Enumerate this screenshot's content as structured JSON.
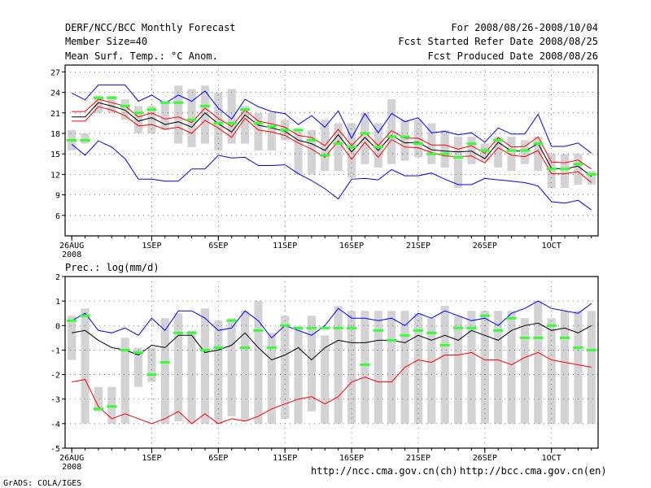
{
  "header": {
    "title": "DERF/NCC/BCC Monthly Forecast",
    "member_size": "Member Size=40",
    "variable": "Mean Surf. Temp.: °C Anom.",
    "period": "For 2008/08/26-2008/10/04",
    "fcst_started": "Fcst Started Refer Date 2008/08/25",
    "fcst_produced": "Fcst Produced Date 2008/08/26"
  },
  "footer": {
    "url_ncc": "http://ncc.cma.gov.cn(ch)",
    "url_bcc": "http://bcc.cma.gov.cn(en)",
    "credit": "GrADS: COLA/IGES"
  },
  "x_axis": {
    "labels": [
      "26AUG",
      "1SEP",
      "6SEP",
      "11SEP",
      "16SEP",
      "21SEP",
      "26SEP",
      "1OCT"
    ],
    "label_days": [
      0,
      6,
      11,
      16,
      21,
      26,
      31,
      36
    ],
    "year_label": "2008",
    "day_count": 40
  },
  "chart_data": [
    {
      "type": "line",
      "title": "Mean Surf. Temp.: °C Anom.",
      "ylim": [
        3,
        28
      ],
      "yticks": [
        6,
        9,
        12,
        15,
        18,
        21,
        24,
        27
      ],
      "grid": true,
      "series": [
        {
          "name": "max",
          "color": "#0000ff",
          "values": [
            23.9,
            22.9,
            25.1,
            25.1,
            25.1,
            22.7,
            23.6,
            22.4,
            23.6,
            22.7,
            24.2,
            21.7,
            20.1,
            23.0,
            21.9,
            21.2,
            20.9,
            19.3,
            20.6,
            18.9,
            21.3,
            17.3,
            20.9,
            18.1,
            20.9,
            19.7,
            20.3,
            18.1,
            18.3,
            17.8,
            18.1,
            16.7,
            18.8,
            17.9,
            17.9,
            20.8,
            16.1,
            16.1,
            16.6,
            15.1
          ]
        },
        {
          "name": "upper",
          "color": "#ff0000",
          "values": [
            21.2,
            21.2,
            23.0,
            22.5,
            22.0,
            20.4,
            21.0,
            20.1,
            20.4,
            19.6,
            21.7,
            20.2,
            19.0,
            21.4,
            19.8,
            19.4,
            18.9,
            17.7,
            17.4,
            16.2,
            18.6,
            16.2,
            18.2,
            16.2,
            18.4,
            17.3,
            17.3,
            16.3,
            16.3,
            15.7,
            16.2,
            15.1,
            17.4,
            16.0,
            16.1,
            17.5,
            13.8,
            13.7,
            14.1,
            12.8
          ]
        },
        {
          "name": "mean",
          "color": "#000000",
          "values": [
            20.4,
            20.4,
            22.5,
            22.0,
            21.4,
            19.8,
            20.3,
            19.3,
            19.7,
            18.9,
            21.0,
            19.4,
            18.2,
            20.7,
            19.2,
            18.8,
            18.3,
            17.0,
            16.5,
            15.5,
            17.8,
            15.3,
            17.4,
            15.5,
            17.7,
            16.6,
            16.7,
            15.6,
            15.4,
            15.3,
            15.4,
            14.3,
            16.7,
            15.4,
            15.4,
            16.5,
            12.9,
            12.8,
            13.2,
            11.7
          ]
        },
        {
          "name": "lower",
          "color": "#ff0000",
          "values": [
            19.8,
            19.8,
            21.9,
            21.4,
            20.6,
            19.1,
            19.3,
            18.6,
            18.9,
            18.0,
            19.9,
            18.8,
            17.4,
            20.2,
            18.5,
            18.2,
            17.7,
            16.6,
            15.7,
            14.5,
            16.9,
            14.2,
            16.7,
            14.5,
            17.1,
            16.0,
            15.9,
            15.2,
            14.7,
            14.6,
            14.7,
            13.7,
            15.9,
            14.8,
            14.6,
            15.5,
            12.1,
            12.1,
            12.4,
            10.8
          ]
        },
        {
          "name": "min",
          "color": "#0000ff",
          "values": [
            16.4,
            14.8,
            16.9,
            16.0,
            14.3,
            11.3,
            11.3,
            11.0,
            11.0,
            12.8,
            12.8,
            14.8,
            14.4,
            14.5,
            13.3,
            13.3,
            13.4,
            12.1,
            11.1,
            9.9,
            8.4,
            11.3,
            11.4,
            11.2,
            12.7,
            11.8,
            11.8,
            12.2,
            11.3,
            10.5,
            10.5,
            11.4,
            11.2,
            11.0,
            10.8,
            10.3,
            8.0,
            7.8,
            8.2,
            6.8
          ]
        }
      ],
      "boxes": {
        "low": [
          15.5,
          16.5,
          21.0,
          21.0,
          20.0,
          18.0,
          18.0,
          18.5,
          16.5,
          16.0,
          16.5,
          15.5,
          16.5,
          16.5,
          15.5,
          15.5,
          17.0,
          12.0,
          12.0,
          12.5,
          12.5,
          11.5,
          13.5,
          13.0,
          13.5,
          14.0,
          14.5,
          13.5,
          13.0,
          10.0,
          13.5,
          14.0,
          13.0,
          12.5,
          13.5,
          12.5,
          10.0,
          10.0,
          10.5,
          10.5
        ],
        "high": [
          18.5,
          18.0,
          23.5,
          23.5,
          23.0,
          22.0,
          22.0,
          22.5,
          25.0,
          24.5,
          25.0,
          24.0,
          24.5,
          22.0,
          21.0,
          21.0,
          20.0,
          18.5,
          18.5,
          20.0,
          19.5,
          19.5,
          21.0,
          19.5,
          23.0,
          20.0,
          20.0,
          19.5,
          18.5,
          17.5,
          17.5,
          16.5,
          17.5,
          17.5,
          17.0,
          17.5,
          15.0,
          15.0,
          15.0,
          12.5
        ]
      },
      "obs_marks": [
        17.0,
        17.0,
        23.2,
        23.2,
        22.0,
        21.0,
        21.5,
        22.5,
        22.5,
        20.0,
        22.0,
        19.5,
        19.5,
        21.5,
        19.5,
        19.0,
        18.5,
        18.5,
        17.0,
        14.8,
        16.5,
        16.0,
        18.0,
        16.0,
        17.5,
        17.5,
        16.5,
        15.0,
        15.0,
        14.5,
        16.5,
        15.5,
        17.0,
        15.5,
        15.5,
        16.5,
        12.8,
        12.8,
        13.5,
        12.0
      ]
    },
    {
      "type": "line",
      "title": "Prec.: log(mm/d)",
      "ylim": [
        -5,
        2
      ],
      "yticks": [
        -5,
        -4,
        -3,
        -2,
        -1,
        0,
        1,
        2
      ],
      "grid": true,
      "series": [
        {
          "name": "max",
          "color": "#0000ff",
          "values": [
            0.2,
            0.5,
            -0.2,
            -0.3,
            -0.1,
            -0.4,
            0.3,
            -0.2,
            0.6,
            0.6,
            0.3,
            -0.2,
            -0.1,
            0.6,
            0.2,
            -0.5,
            0.0,
            -0.2,
            -0.4,
            0.0,
            0.7,
            0.3,
            0.3,
            0.2,
            0.3,
            0.0,
            0.5,
            0.3,
            0.6,
            0.4,
            0.2,
            0.3,
            0.0,
            0.5,
            0.7,
            1.0,
            0.7,
            0.6,
            0.5,
            0.9
          ]
        },
        {
          "name": "mean",
          "color": "#000000",
          "values": [
            -0.3,
            -0.2,
            -0.6,
            -0.9,
            -1.0,
            -1.2,
            -0.8,
            -0.9,
            -0.4,
            -0.4,
            -1.1,
            -1.0,
            -0.8,
            -0.3,
            -0.9,
            -1.4,
            -1.2,
            -0.9,
            -1.4,
            -0.9,
            -0.6,
            -0.7,
            -0.7,
            -0.6,
            -0.6,
            -0.7,
            -0.4,
            -0.6,
            -0.4,
            -0.6,
            -0.2,
            -0.4,
            -0.6,
            -0.2,
            0.0,
            0.1,
            -0.2,
            -0.1,
            -0.3,
            0.0
          ]
        },
        {
          "name": "lower",
          "color": "#ff0000",
          "values": [
            -2.3,
            -2.2,
            -3.3,
            -3.8,
            -3.6,
            -3.8,
            -4.0,
            -3.8,
            -3.5,
            -4.0,
            -3.6,
            -4.0,
            -3.8,
            -3.9,
            -3.7,
            -3.4,
            -3.2,
            -3.0,
            -2.9,
            -3.2,
            -2.9,
            -2.3,
            -2.1,
            -2.3,
            -2.3,
            -1.7,
            -1.4,
            -1.5,
            -1.2,
            -1.2,
            -1.1,
            -1.4,
            -1.4,
            -1.6,
            -1.3,
            -1.1,
            -1.4,
            -1.5,
            -1.6,
            -1.7
          ]
        }
      ],
      "bars_low": [
        -1.4,
        -4.0,
        -3.5,
        -4.0,
        -4.0,
        -2.5,
        -2.3,
        -4.0,
        -3.9,
        -4.0,
        -4.0,
        -4.0,
        -3.7,
        -3.9,
        -4.0,
        -4.0,
        -3.8,
        -4.0,
        -3.5,
        -4.0,
        -4.0,
        -4.0,
        -4.0,
        -4.0,
        -4.0,
        -4.0,
        -4.0,
        -4.0,
        -4.0,
        -4.0,
        -4.0,
        -4.0,
        -4.0,
        -4.0,
        -4.0,
        -4.0,
        -4.0,
        -4.0,
        -4.0,
        -4.0
      ],
      "bars_high": [
        0.4,
        0.7,
        -2.5,
        -2.5,
        -0.5,
        -0.9,
        -0.9,
        0.3,
        0.5,
        -0.2,
        0.7,
        0.2,
        0.3,
        0.6,
        1.0,
        -0.3,
        0.4,
        -0.1,
        0.4,
        -0.4,
        0.8,
        0.6,
        0.6,
        0.6,
        0.6,
        0.6,
        0.5,
        0.3,
        0.8,
        0.4,
        0.6,
        0.6,
        0.6,
        0.6,
        0.3,
        1.0,
        0.3,
        0.6,
        0.6,
        0.6
      ],
      "obs_marks": [
        0.2,
        0.4,
        -3.4,
        -3.3,
        -1.0,
        -1.1,
        -2.0,
        -1.5,
        -0.3,
        -0.3,
        -1.0,
        -0.9,
        0.2,
        -0.9,
        -0.2,
        -0.9,
        0.0,
        -0.1,
        -0.1,
        -0.1,
        -0.1,
        -0.1,
        -1.6,
        -0.2,
        -0.6,
        -0.4,
        -0.2,
        -0.3,
        -0.8,
        -0.1,
        -0.1,
        0.4,
        -0.2,
        0.3,
        -0.5,
        -0.5,
        0.0,
        -0.5,
        -0.9,
        -1.0
      ]
    }
  ],
  "colors": {
    "box": "#d3d3d6",
    "obs": "#33ff33",
    "blue": "#0000ff",
    "red": "#ff0000",
    "mean": "#000000"
  }
}
